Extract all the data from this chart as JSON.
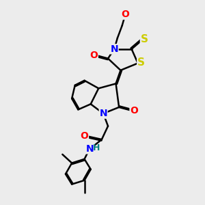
{
  "bg_color": "#ececec",
  "atom_colors": {
    "N": "#0000FF",
    "O": "#FF0000",
    "S": "#CCCC00",
    "H": "#008080",
    "C": "#000000"
  },
  "bond_color": "#000000",
  "bond_width": 1.8,
  "font_size_atom": 10,
  "lw": 1.8
}
